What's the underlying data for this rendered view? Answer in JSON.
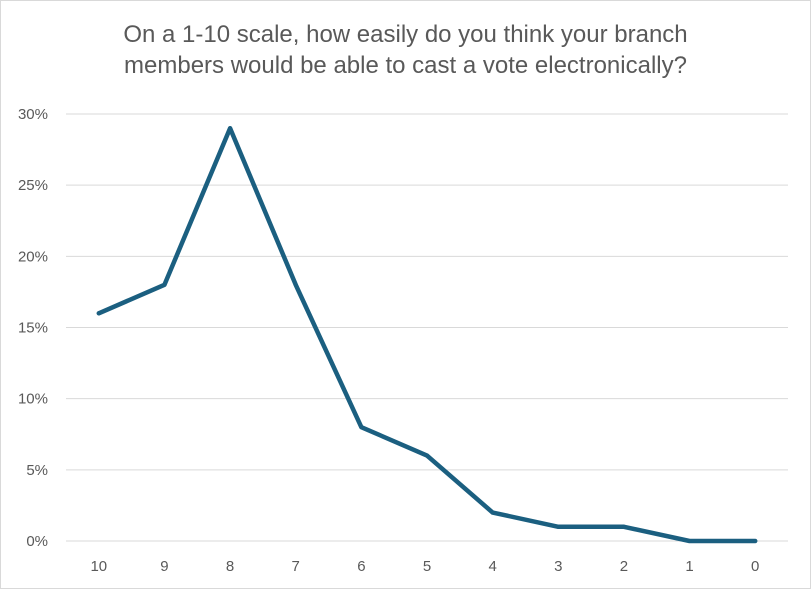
{
  "chart_data": {
    "type": "line",
    "title_lines": [
      "On a 1-10 scale, how easily do you think your branch",
      "members would be able to cast a vote electronically?"
    ],
    "categories": [
      "10",
      "9",
      "8",
      "7",
      "6",
      "5",
      "4",
      "3",
      "2",
      "1",
      "0"
    ],
    "series": [
      {
        "values": [
          16,
          18,
          29,
          18,
          8,
          6,
          2,
          1,
          1,
          0,
          0
        ],
        "color": "#1b5f80"
      }
    ],
    "ylim": [
      0,
      30
    ],
    "y_ticks": [
      0,
      5,
      10,
      15,
      20,
      25,
      30
    ],
    "y_tick_labels": [
      "0%",
      "5%",
      "10%",
      "15%",
      "20%",
      "25%",
      "30%"
    ],
    "grid": "horizontal",
    "legend": "none",
    "colors": {
      "line": "#1b5f80",
      "grid": "#d9d9d9",
      "text": "#595959"
    }
  }
}
